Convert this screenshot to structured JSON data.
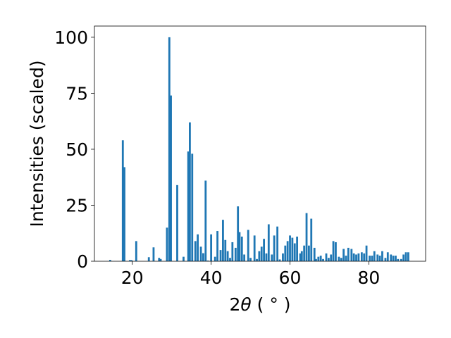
{
  "chart_data": {
    "type": "bar",
    "xlabel_parts": {
      "prefix": "2",
      "theta": "θ",
      "unit": " ( ° )"
    },
    "ylabel": "Intensities (scaled)",
    "xlim": [
      10.4,
      94.4
    ],
    "ylim": [
      0,
      105
    ],
    "xticks": [
      20,
      40,
      60,
      80
    ],
    "yticks": [
      0,
      25,
      50,
      75,
      100
    ],
    "bar_width": 0.5,
    "bar_color": "#1f77b4",
    "x": [
      14.4,
      17.6,
      18.0,
      19.4,
      19.8,
      21.0,
      24.2,
      25.4,
      26.8,
      27.2,
      28.8,
      29.4,
      29.8,
      31.4,
      33.0,
      34.2,
      34.6,
      35.2,
      36.0,
      36.6,
      37.4,
      38.0,
      38.6,
      39.2,
      40.0,
      41.0,
      41.6,
      42.4,
      43.0,
      43.6,
      44.2,
      44.8,
      45.4,
      46.2,
      46.8,
      47.2,
      47.8,
      48.4,
      49.4,
      50.0,
      51.0,
      51.6,
      52.2,
      52.8,
      53.4,
      54.0,
      54.6,
      55.4,
      56.0,
      56.8,
      57.4,
      58.2,
      58.8,
      59.4,
      60.0,
      60.6,
      61.2,
      61.8,
      62.6,
      63.0,
      63.6,
      64.2,
      64.8,
      65.4,
      66.2,
      66.6,
      67.2,
      67.8,
      68.4,
      69.2,
      69.8,
      70.4,
      71.0,
      71.6,
      72.4,
      73.0,
      73.6,
      74.2,
      74.8,
      75.6,
      76.2,
      76.8,
      77.4,
      78.2,
      78.8,
      79.4,
      80.2,
      80.8,
      81.4,
      82.2,
      82.8,
      83.4,
      84.2,
      84.8,
      85.6,
      86.2,
      86.8,
      87.4,
      88.2,
      88.8,
      89.4,
      90.0
    ],
    "values": [
      0.6,
      54,
      42,
      0.5,
      0.5,
      9,
      1.8,
      6.2,
      1.5,
      1.0,
      15,
      100,
      74,
      34,
      2,
      49,
      62,
      48,
      9,
      12,
      6.5,
      3.6,
      36,
      0.3,
      12,
      2,
      13.5,
      5,
      18.5,
      9.5,
      4.5,
      1.5,
      8.5,
      6,
      24.5,
      13,
      11,
      3,
      14,
      1.5,
      11.5,
      1,
      4.5,
      6.5,
      10,
      3.5,
      16.5,
      3,
      11.5,
      15.5,
      0.8,
      3.5,
      7,
      9,
      11.5,
      10.5,
      8,
      11,
      3.5,
      4.5,
      7,
      21.5,
      7,
      19,
      6,
      1,
      2,
      2.5,
      1,
      3.5,
      1.5,
      3,
      9,
      8.5,
      2,
      1.5,
      5.5,
      2.5,
      6,
      5.5,
      3.5,
      3,
      3.5,
      4,
      3.5,
      7,
      2.5,
      2.5,
      4.5,
      3,
      2.5,
      4.5,
      1.5,
      4,
      3,
      2.5,
      2.5,
      1,
      1,
      3,
      4,
      4
    ]
  }
}
